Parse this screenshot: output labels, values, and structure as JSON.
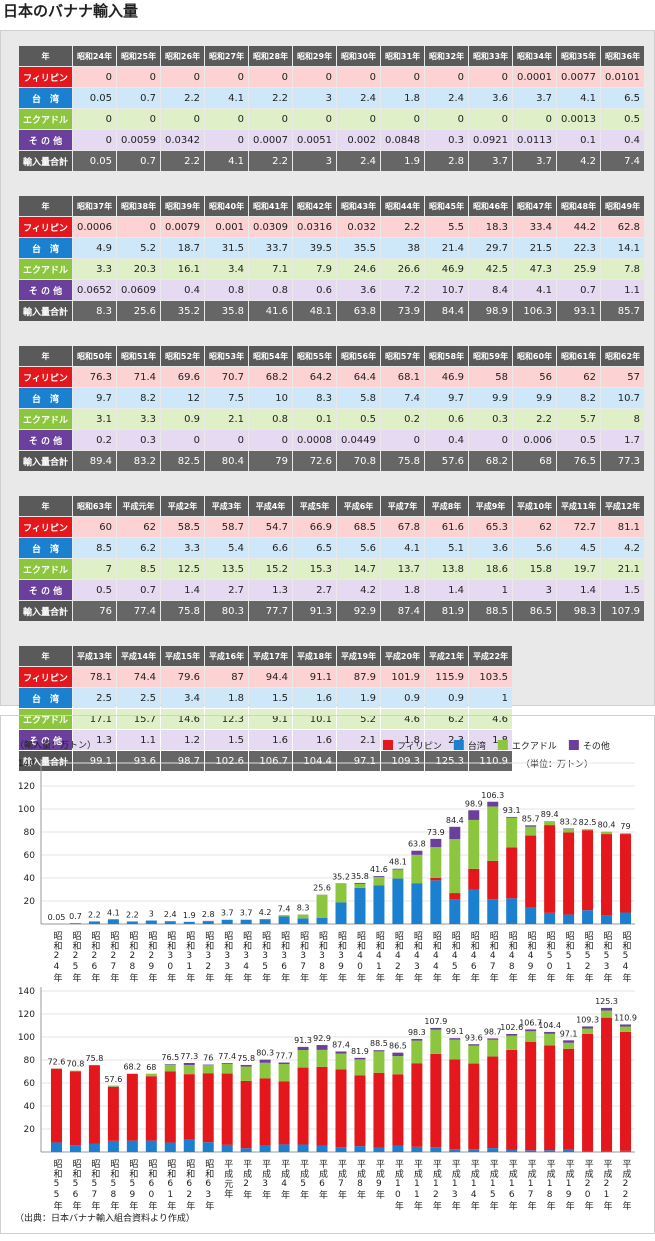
{
  "title": "日本のバナナ輸入量",
  "year_header": "年",
  "row_labels": [
    "フィリピン",
    "台　湾",
    "エクアドル",
    "そ の 他",
    "輸入量合計"
  ],
  "tables": [
    {
      "columns": [
        "昭和24年",
        "昭和25年",
        "昭和26年",
        "昭和27年",
        "昭和28年",
        "昭和29年",
        "昭和30年",
        "昭和31年",
        "昭和32年",
        "昭和33年",
        "昭和34年",
        "昭和35年",
        "昭和36年"
      ],
      "rows": [
        [
          0,
          0,
          0,
          0,
          0,
          0,
          0,
          0,
          0,
          0,
          0.0001,
          0.0077,
          0.0101
        ],
        [
          0.05,
          0.7,
          2.2,
          4.1,
          2.2,
          3,
          2.4,
          1.8,
          2.4,
          3.6,
          3.7,
          4.1,
          6.5
        ],
        [
          0,
          0,
          0,
          0,
          0,
          0,
          0,
          0,
          0,
          0,
          0,
          0.0013,
          0.5
        ],
        [
          0,
          0.0059,
          0.0342,
          0,
          0.0007,
          0.0051,
          0.002,
          0.0848,
          0.3,
          0.0921,
          0.0113,
          0.1,
          0.4
        ],
        [
          0.05,
          0.7,
          2.2,
          4.1,
          2.2,
          3,
          2.4,
          1.9,
          2.8,
          3.7,
          3.7,
          4.2,
          7.4
        ]
      ]
    },
    {
      "columns": [
        "昭和37年",
        "昭和38年",
        "昭和39年",
        "昭和40年",
        "昭和41年",
        "昭和42年",
        "昭和43年",
        "昭和44年",
        "昭和45年",
        "昭和46年",
        "昭和47年",
        "昭和48年",
        "昭和49年"
      ],
      "rows": [
        [
          0.0006,
          0,
          0.0079,
          0.001,
          0.0309,
          0.0316,
          0.032,
          2.2,
          5.5,
          18.3,
          33.4,
          44.2,
          62.8
        ],
        [
          4.9,
          5.2,
          18.7,
          31.5,
          33.7,
          39.5,
          35.5,
          38,
          21.4,
          29.7,
          21.5,
          22.3,
          14.1
        ],
        [
          3.3,
          20.3,
          16.1,
          3.4,
          7.1,
          7.9,
          24.6,
          26.6,
          46.9,
          42.5,
          47.3,
          25.9,
          7.8
        ],
        [
          0.0652,
          0.0609,
          0.4,
          0.8,
          0.8,
          0.6,
          3.6,
          7.2,
          10.7,
          8.4,
          4.1,
          0.7,
          1.1
        ],
        [
          8.3,
          25.6,
          35.2,
          35.8,
          41.6,
          48.1,
          63.8,
          73.9,
          84.4,
          98.9,
          106.3,
          93.1,
          85.7
        ]
      ]
    },
    {
      "columns": [
        "昭和50年",
        "昭和51年",
        "昭和52年",
        "昭和53年",
        "昭和54年",
        "昭和55年",
        "昭和56年",
        "昭和57年",
        "昭和58年",
        "昭和59年",
        "昭和60年",
        "昭和61年",
        "昭和62年"
      ],
      "rows": [
        [
          76.3,
          71.4,
          69.6,
          70.7,
          68.2,
          64.2,
          64.4,
          68.1,
          46.9,
          58,
          56,
          62,
          57
        ],
        [
          9.7,
          8.2,
          12,
          7.5,
          10,
          8.3,
          5.8,
          7.4,
          9.7,
          9.9,
          9.9,
          8.2,
          10.7
        ],
        [
          3.1,
          3.3,
          0.9,
          2.1,
          0.8,
          0.1,
          0.5,
          0.2,
          0.6,
          0.3,
          2.2,
          5.7,
          8
        ],
        [
          0.2,
          0.3,
          0,
          0,
          0,
          0.0008,
          0.0449,
          0,
          0.4,
          0,
          0.006,
          0.5,
          1.7
        ],
        [
          89.4,
          83.2,
          82.5,
          80.4,
          79,
          72.6,
          70.8,
          75.8,
          57.6,
          68.2,
          68,
          76.5,
          77.3
        ]
      ]
    },
    {
      "columns": [
        "昭和63年",
        "平成元年",
        "平成2年",
        "平成3年",
        "平成4年",
        "平成5年",
        "平成6年",
        "平成7年",
        "平成8年",
        "平成9年",
        "平成10年",
        "平成11年",
        "平成12年"
      ],
      "rows": [
        [
          60,
          62,
          58.5,
          58.7,
          54.7,
          66.9,
          68.5,
          67.8,
          61.6,
          65.3,
          62,
          72.7,
          81.1
        ],
        [
          8.5,
          6.2,
          3.3,
          5.4,
          6.6,
          6.5,
          5.6,
          4.1,
          5.1,
          3.6,
          5.6,
          4.5,
          4.2
        ],
        [
          7,
          8.5,
          12.5,
          13.5,
          15.2,
          15.3,
          14.7,
          13.7,
          13.8,
          18.6,
          15.8,
          19.7,
          21.1
        ],
        [
          0.5,
          0.7,
          1.4,
          2.7,
          1.3,
          2.7,
          4.2,
          1.8,
          1.4,
          1,
          3,
          1.4,
          1.5
        ],
        [
          76,
          77.4,
          75.8,
          80.3,
          77.7,
          91.3,
          92.9,
          87.4,
          81.9,
          88.5,
          86.5,
          98.3,
          107.9
        ]
      ]
    },
    {
      "columns": [
        "平成13年",
        "平成14年",
        "平成15年",
        "平成16年",
        "平成17年",
        "平成18年",
        "平成19年",
        "平成20年",
        "平成21年",
        "平成22年"
      ],
      "rows": [
        [
          78.1,
          74.4,
          79.6,
          87,
          94.4,
          91.1,
          87.9,
          101.9,
          115.9,
          103.5
        ],
        [
          2.5,
          2.5,
          3.4,
          1.8,
          1.5,
          1.6,
          1.9,
          0.9,
          0.9,
          1
        ],
        [
          17.1,
          15.7,
          14.6,
          12.3,
          9.1,
          10.1,
          5.2,
          4.6,
          6.2,
          4.6
        ],
        [
          1.3,
          1.1,
          1.2,
          1.5,
          1.6,
          1.6,
          2.1,
          1.8,
          2.3,
          1.8
        ],
        [
          99.1,
          93.6,
          98.7,
          102.6,
          106.7,
          104.4,
          97.1,
          109.3,
          125.3,
          110.9
        ]
      ]
    }
  ],
  "unit_note": "（単位：万トン）",
  "chart_data": [
    {
      "type": "stacked_bar",
      "y_label": "（輸入量：万トン）",
      "ylim": [
        0,
        140
      ],
      "yticks": [
        20,
        40,
        60,
        80,
        100,
        120,
        140
      ],
      "grid": true,
      "stack_order": [
        1,
        0,
        2,
        3
      ],
      "categories": [
        "昭和24年",
        "昭和25年",
        "昭和26年",
        "昭和27年",
        "昭和28年",
        "昭和29年",
        "昭和30年",
        "昭和31年",
        "昭和32年",
        "昭和33年",
        "昭和34年",
        "昭和35年",
        "昭和36年",
        "昭和37年",
        "昭和38年",
        "昭和39年",
        "昭和40年",
        "昭和41年",
        "昭和42年",
        "昭和43年",
        "昭和44年",
        "昭和45年",
        "昭和46年",
        "昭和47年",
        "昭和48年",
        "昭和49年",
        "昭和50年",
        "昭和51年",
        "昭和52年",
        "昭和53年",
        "昭和54年"
      ],
      "series": [
        {
          "name": "フィリピン",
          "color": "#e3171c",
          "values": [
            0,
            0,
            0,
            0,
            0,
            0,
            0,
            0,
            0,
            0,
            0.0001,
            0.0077,
            0.0101,
            0.0006,
            0,
            0.0079,
            0.001,
            0.0309,
            0.0316,
            0.032,
            2.2,
            5.5,
            18.3,
            33.4,
            44.2,
            62.8,
            76.3,
            71.4,
            69.6,
            70.7,
            68.2
          ]
        },
        {
          "name": "台湾",
          "color": "#1b80d0",
          "values": [
            0.05,
            0.7,
            2.2,
            4.1,
            2.2,
            3,
            2.4,
            1.8,
            2.4,
            3.6,
            3.7,
            4.1,
            6.5,
            4.9,
            5.2,
            18.7,
            31.5,
            33.7,
            39.5,
            35.5,
            38,
            21.4,
            29.7,
            21.5,
            22.3,
            14.1,
            9.7,
            8.2,
            12,
            7.5,
            10
          ]
        },
        {
          "name": "エクアドル",
          "color": "#8cc63f",
          "values": [
            0,
            0,
            0,
            0,
            0,
            0,
            0,
            0,
            0,
            0,
            0,
            0.0013,
            0.5,
            3.3,
            20.3,
            16.1,
            3.4,
            7.1,
            7.9,
            24.6,
            26.6,
            46.9,
            42.5,
            47.3,
            25.9,
            7.8,
            3.1,
            3.3,
            0.9,
            2.1,
            0.8
          ]
        },
        {
          "name": "その他",
          "color": "#6b3f9c",
          "values": [
            0,
            0.0059,
            0.0342,
            0,
            0.0007,
            0.0051,
            0.002,
            0.0848,
            0.3,
            0.0921,
            0.0113,
            0.1,
            0.4,
            0.0652,
            0.0609,
            0.4,
            0.8,
            0.8,
            0.6,
            3.6,
            7.2,
            10.7,
            8.4,
            4.1,
            0.7,
            1.1,
            0.2,
            0.3,
            0,
            0,
            0
          ]
        }
      ],
      "totals": [
        0.05,
        0.7,
        2.2,
        4.1,
        2.2,
        3,
        2.4,
        1.9,
        2.8,
        3.7,
        3.7,
        4.2,
        7.4,
        8.3,
        25.6,
        35.2,
        35.8,
        41.6,
        48.1,
        63.8,
        73.9,
        84.4,
        98.9,
        106.3,
        93.1,
        85.7,
        89.4,
        83.2,
        82.5,
        80.4,
        79
      ]
    },
    {
      "type": "stacked_bar",
      "ylim": [
        0,
        140
      ],
      "yticks": [
        20,
        40,
        60,
        80,
        100,
        120,
        140
      ],
      "grid": true,
      "stack_order": [
        1,
        0,
        2,
        3
      ],
      "categories": [
        "昭和55年",
        "昭和56年",
        "昭和57年",
        "昭和58年",
        "昭和59年",
        "昭和60年",
        "昭和61年",
        "昭和62年",
        "昭和63年",
        "平成元年",
        "平成2年",
        "平成3年",
        "平成4年",
        "平成5年",
        "平成6年",
        "平成7年",
        "平成8年",
        "平成9年",
        "平成10年",
        "平成11年",
        "平成12年",
        "平成13年",
        "平成14年",
        "平成15年",
        "平成16年",
        "平成17年",
        "平成18年",
        "平成19年",
        "平成20年",
        "平成21年",
        "平成22年"
      ],
      "series": [
        {
          "color": "#e3171c",
          "values": [
            64.2,
            64.4,
            68.1,
            46.9,
            58,
            56,
            62,
            57,
            60,
            62,
            58.5,
            58.7,
            54.7,
            66.9,
            68.5,
            67.8,
            61.6,
            65.3,
            62,
            72.7,
            81.1,
            78.1,
            74.4,
            79.6,
            87,
            94.4,
            91.1,
            87.9,
            101.9,
            115.9,
            103.5
          ]
        },
        {
          "color": "#1b80d0",
          "values": [
            8.3,
            5.8,
            7.4,
            9.7,
            9.9,
            9.9,
            8.2,
            10.7,
            8.5,
            6.2,
            3.3,
            5.4,
            6.6,
            6.5,
            5.6,
            4.1,
            5.1,
            3.6,
            5.6,
            4.5,
            4.2,
            2.5,
            2.5,
            3.4,
            1.8,
            1.5,
            1.6,
            1.9,
            0.9,
            0.9,
            1
          ]
        },
        {
          "color": "#8cc63f",
          "values": [
            0.1,
            0.5,
            0.2,
            0.6,
            0.3,
            2.2,
            5.7,
            8,
            7,
            8.5,
            12.5,
            13.5,
            15.2,
            15.3,
            14.7,
            13.7,
            13.8,
            18.6,
            15.8,
            19.7,
            21.1,
            17.1,
            15.7,
            14.6,
            12.3,
            9.1,
            10.1,
            5.2,
            4.6,
            6.2,
            4.6
          ]
        },
        {
          "color": "#6b3f9c",
          "values": [
            0.0008,
            0.0449,
            0,
            0.4,
            0,
            0.006,
            0.5,
            1.7,
            0.5,
            0.7,
            1.4,
            2.7,
            1.3,
            2.7,
            4.2,
            1.8,
            1.4,
            1,
            3,
            1.4,
            1.5,
            1.3,
            1.1,
            1.2,
            1.5,
            1.6,
            1.6,
            2.1,
            1.8,
            2.3,
            1.8
          ]
        }
      ],
      "totals": [
        72.6,
        70.8,
        75.8,
        57.6,
        68.2,
        68,
        76.5,
        77.3,
        76,
        77.4,
        75.8,
        80.3,
        77.7,
        91.3,
        92.9,
        87.4,
        81.9,
        88.5,
        86.5,
        98.3,
        107.9,
        99.1,
        93.6,
        98.7,
        102.6,
        106.7,
        104.4,
        97.1,
        109.3,
        125.3,
        110.9
      ]
    }
  ],
  "source": "（出典：日本バナナ輸入組合資料より作成）"
}
